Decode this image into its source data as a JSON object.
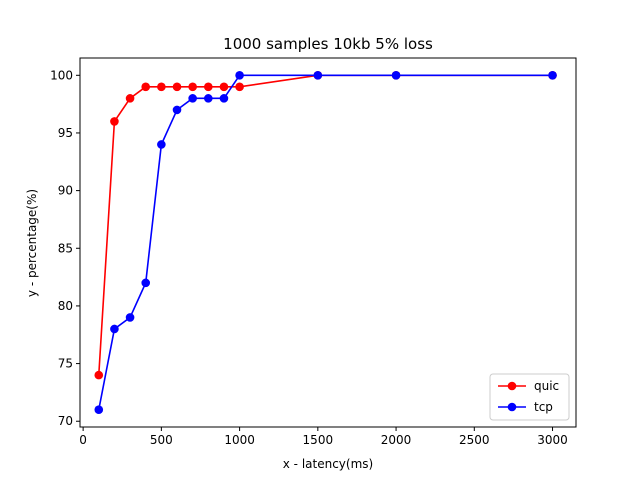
{
  "chart_data": {
    "type": "line",
    "title": "1000 samples 10kb 5% loss",
    "xlabel": "x - latency(ms)",
    "ylabel": "y - percentage(%)",
    "xlim": [
      -20,
      3150
    ],
    "ylim": [
      69.5,
      101.5
    ],
    "xticks": [
      0,
      500,
      1000,
      1500,
      2000,
      2500,
      3000
    ],
    "yticks": [
      70,
      75,
      80,
      85,
      90,
      95,
      100
    ],
    "grid": false,
    "legend_position": "lower-right",
    "series": [
      {
        "name": "quic",
        "color": "#ff0000",
        "x": [
          100,
          200,
          300,
          400,
          500,
          600,
          700,
          800,
          900,
          1000,
          1500,
          2000,
          3000
        ],
        "y": [
          74,
          96,
          98,
          99,
          99,
          99,
          99,
          99,
          99,
          99,
          100,
          100,
          100
        ]
      },
      {
        "name": "tcp",
        "color": "#0000ff",
        "x": [
          100,
          200,
          300,
          400,
          500,
          600,
          700,
          800,
          900,
          1000,
          1500,
          2000,
          3000
        ],
        "y": [
          71,
          78,
          79,
          82,
          94,
          97,
          98,
          98,
          98,
          100,
          100,
          100,
          100
        ]
      }
    ]
  }
}
